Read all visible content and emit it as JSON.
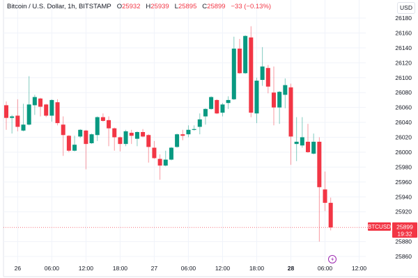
{
  "legend": {
    "symbol": "Bitcoin / U.S. Dollar, 1h, BITSTAMP",
    "o_label": "O",
    "o_value": "25932",
    "h_label": "H",
    "h_value": "25939",
    "l_label": "L",
    "l_value": "25895",
    "c_label": "C",
    "c_value": "25899",
    "change": "−33 (−0.13%)"
  },
  "currency_button": "USD",
  "price_tag": {
    "symbol": "BTCUSD",
    "price": "25899",
    "countdown": "19:32"
  },
  "colors": {
    "up": "#089981",
    "down": "#f23645",
    "grid": "#f0f3fa",
    "text": "#131722",
    "lightning": "#9c27b0"
  },
  "chart_data": {
    "type": "candlestick",
    "interval": "1h",
    "ylim": [
      25850,
      26190
    ],
    "yticks": [
      "26180",
      "26160",
      "26140",
      "26120",
      "26100",
      "26080",
      "26060",
      "26040",
      "26020",
      "26000",
      "25980",
      "25960",
      "25940",
      "25920",
      "25880",
      "25860"
    ],
    "xticks": [
      {
        "hour": 2,
        "label": "26",
        "bold": false
      },
      {
        "hour": 8,
        "label": "06:00",
        "bold": false
      },
      {
        "hour": 14,
        "label": "12:00",
        "bold": false
      },
      {
        "hour": 20,
        "label": "18:00",
        "bold": false
      },
      {
        "hour": 26,
        "label": "27",
        "bold": false
      },
      {
        "hour": 32,
        "label": "06:00",
        "bold": false
      },
      {
        "hour": 38,
        "label": "12:00",
        "bold": false
      },
      {
        "hour": 44,
        "label": "18:00",
        "bold": false
      },
      {
        "hour": 50,
        "label": "28",
        "bold": true
      },
      {
        "hour": 56,
        "label": "06:00",
        "bold": false
      },
      {
        "hour": 62,
        "label": "12:00",
        "bold": false
      }
    ],
    "last_price": 25899,
    "candles_ohlc": [
      [
        26063,
        26068,
        26030,
        26046
      ],
      [
        26046,
        26050,
        26025,
        26048
      ],
      [
        26049,
        26071,
        26028,
        26034
      ],
      [
        26029,
        26065,
        26028,
        26037
      ],
      [
        26037,
        26102,
        26036,
        26064
      ],
      [
        26063,
        26077,
        26050,
        26074
      ],
      [
        26072,
        26073,
        26048,
        26061
      ],
      [
        26064,
        26065,
        26047,
        26049
      ],
      [
        26049,
        26071,
        26041,
        26070
      ],
      [
        26067,
        26071,
        26036,
        26039
      ],
      [
        26037,
        26048,
        25995,
        26023
      ],
      [
        26022,
        26023,
        26000,
        26002
      ],
      [
        26002,
        26022,
        26001,
        26010
      ],
      [
        26021,
        26031,
        26019,
        26030
      ],
      [
        26029,
        26030,
        25977,
        26011
      ],
      [
        26012,
        26025,
        26011,
        26024
      ],
      [
        26023,
        26048,
        26015,
        26047
      ],
      [
        26047,
        26052,
        26041,
        26042
      ],
      [
        26043,
        26048,
        26008,
        26032
      ],
      [
        26032,
        26033,
        26002,
        26020
      ],
      [
        26020,
        26021,
        26001,
        26011
      ],
      [
        26011,
        26030,
        26008,
        26028
      ],
      [
        26026,
        26030,
        26011,
        26022
      ],
      [
        26018,
        26028,
        26008,
        26027
      ],
      [
        26027,
        26031,
        26020,
        26021
      ],
      [
        26023,
        26024,
        25986,
        26007
      ],
      [
        26006,
        26015,
        25991,
        25992
      ],
      [
        25991,
        25997,
        25963,
        25982
      ],
      [
        25982,
        26002,
        25981,
        25990
      ],
      [
        25990,
        26007,
        25989,
        26006
      ],
      [
        26007,
        26025,
        26006,
        26024
      ],
      [
        26024,
        26030,
        26016,
        26022
      ],
      [
        26024,
        26036,
        26020,
        26030
      ],
      [
        26030,
        26036,
        26029,
        26031
      ],
      [
        26034,
        26052,
        26024,
        26044
      ],
      [
        26048,
        26059,
        26037,
        26058
      ],
      [
        26058,
        26075,
        26057,
        26074
      ],
      [
        26070,
        26071,
        26051,
        26052
      ],
      [
        26053,
        26066,
        26048,
        26064
      ],
      [
        26066,
        26075,
        26058,
        26070
      ],
      [
        26071,
        26155,
        26070,
        26139
      ],
      [
        26139,
        26152,
        26105,
        26106
      ],
      [
        26106,
        26157,
        26105,
        26156
      ],
      [
        26154,
        26169,
        26047,
        26053
      ],
      [
        26052,
        26100,
        26039,
        26096
      ],
      [
        26097,
        26141,
        26089,
        26115
      ],
      [
        26113,
        26117,
        26079,
        26088
      ],
      [
        26080,
        26115,
        26036,
        26060
      ],
      [
        26060,
        26082,
        26038,
        26081
      ],
      [
        26077,
        26099,
        26059,
        26090
      ],
      [
        26087,
        26092,
        25983,
        26021
      ],
      [
        26011,
        26047,
        25988,
        26014
      ],
      [
        26009,
        26047,
        26006,
        26020
      ],
      [
        26014,
        26038,
        25999,
        26000
      ],
      [
        25998,
        26025,
        25997,
        26014
      ],
      [
        26014,
        26020,
        25880,
        25953
      ],
      [
        25950,
        25974,
        25921,
        25932
      ],
      [
        25932,
        25939,
        25895,
        25899
      ]
    ]
  }
}
